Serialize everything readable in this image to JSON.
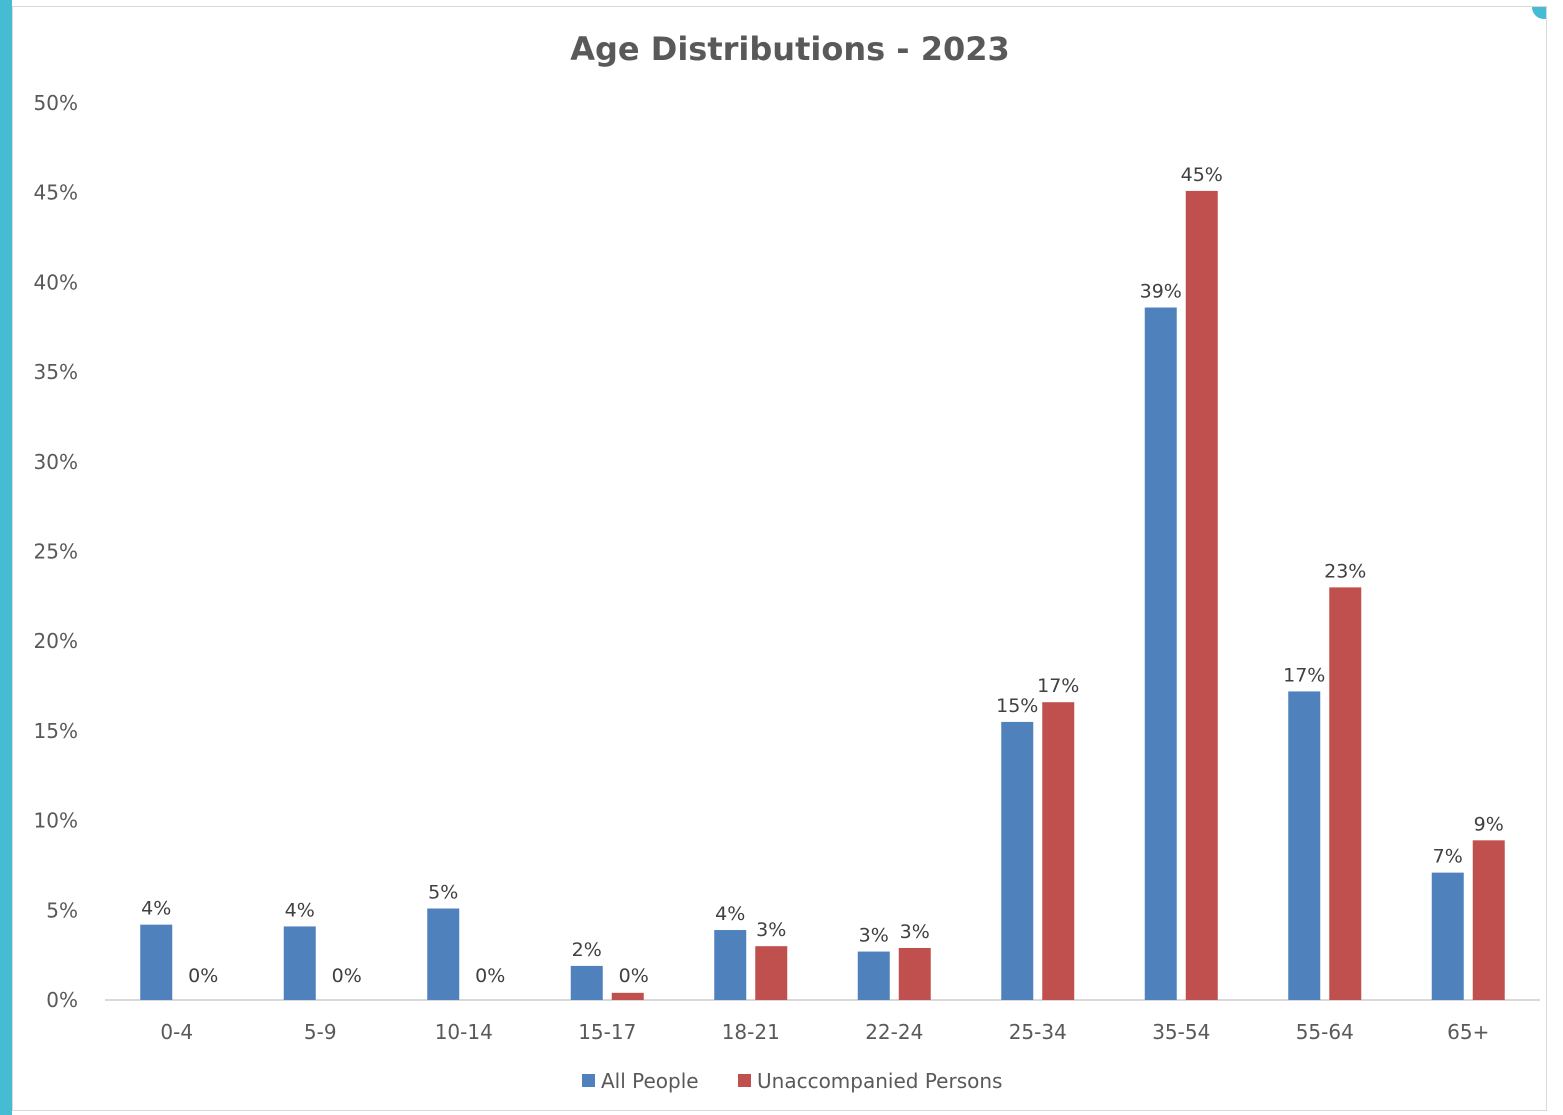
{
  "colors": {
    "side_bar": "#45bcd4",
    "corner": "#45bcd4",
    "axis": "#d9d9d9"
  },
  "chart_data": {
    "type": "bar",
    "title": "Age Distributions - 2023",
    "categories": [
      "0-4",
      "5-9",
      "10-14",
      "15-17",
      "18-21",
      "22-24",
      "25-34",
      "35-54",
      "55-64",
      "65+"
    ],
    "series": [
      {
        "name": "All People",
        "color": "#4f81bd",
        "values": [
          4.2,
          4.1,
          5.1,
          1.9,
          3.9,
          2.7,
          15.5,
          38.6,
          17.2,
          7.1
        ],
        "labels": [
          "4%",
          "4%",
          "5%",
          "2%",
          "4%",
          "3%",
          "15%",
          "39%",
          "17%",
          "7%"
        ]
      },
      {
        "name": "Unaccompanied Persons",
        "color": "#c0504d",
        "values": [
          0,
          0,
          0,
          0.4,
          3.0,
          2.9,
          16.6,
          45.1,
          23.0,
          8.9
        ],
        "labels": [
          "0%",
          "0%",
          "0%",
          "0%",
          "3%",
          "3%",
          "17%",
          "45%",
          "23%",
          "9%"
        ]
      }
    ],
    "yticks": [
      "0%",
      "5%",
      "10%",
      "15%",
      "20%",
      "25%",
      "30%",
      "35%",
      "40%",
      "45%",
      "50%"
    ],
    "ylim": [
      0,
      50
    ],
    "grid": false,
    "legend": "bottom"
  }
}
